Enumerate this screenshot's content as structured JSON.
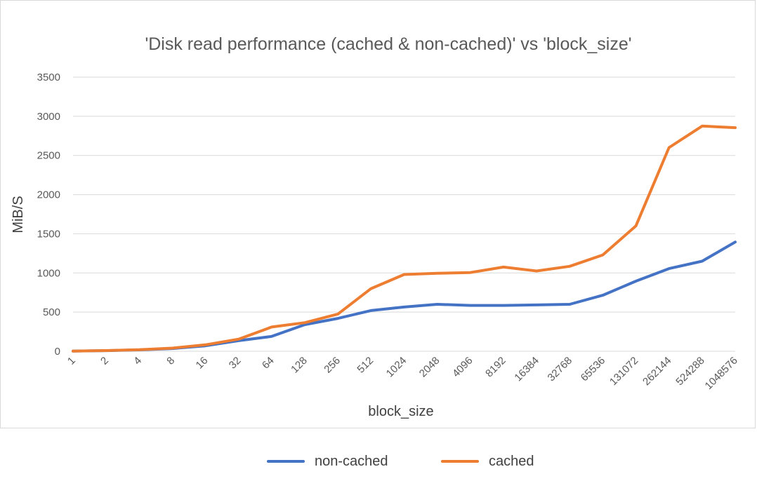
{
  "chart_data": {
    "type": "line",
    "title": "'Disk read performance (cached & non-cached)' vs 'block_size'",
    "xlabel": "block_size",
    "ylabel": "MiB/S",
    "ylim": [
      0,
      3500
    ],
    "yticks": [
      "0",
      "500",
      "1000",
      "1500",
      "2000",
      "2500",
      "3000",
      "3500"
    ],
    "grid": true,
    "legend_position": "bottom",
    "categories": [
      "1",
      "2",
      "4",
      "8",
      "16",
      "32",
      "64",
      "128",
      "256",
      "512",
      "1024",
      "2048",
      "4096",
      "8192",
      "16384",
      "32768",
      "65536",
      "131072",
      "262144",
      "524288",
      "1048576"
    ],
    "series": [
      {
        "name": "non-cached",
        "color": "#4472C4",
        "values": [
          3,
          8,
          18,
          35,
          70,
          135,
          190,
          340,
          420,
          520,
          565,
          600,
          585,
          585,
          592,
          600,
          715,
          895,
          1055,
          1150,
          1395
        ]
      },
      {
        "name": "cached",
        "color": "#ED7D31",
        "values": [
          3,
          9,
          20,
          40,
          82,
          155,
          310,
          365,
          475,
          800,
          980,
          995,
          1005,
          1075,
          1025,
          1085,
          1230,
          1600,
          2600,
          2875,
          2855
        ]
      }
    ]
  }
}
